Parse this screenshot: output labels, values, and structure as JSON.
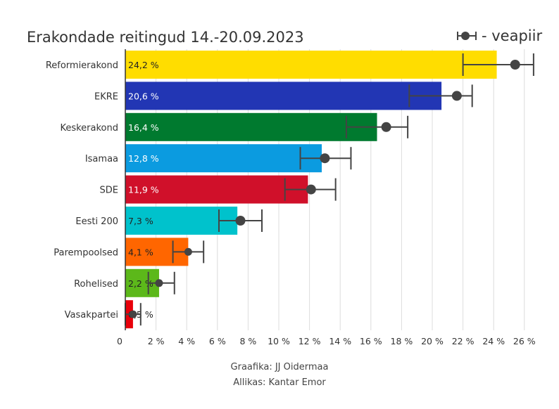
{
  "chart_data": {
    "type": "bar",
    "orientation": "horizontal",
    "title": "Erakondade reitingud 14.-20.09.2023",
    "legend": {
      "label": "- veapiir",
      "placement": "top-right"
    },
    "categories": [
      "Reformierakond",
      "EKRE",
      "Keskerakond",
      "Isamaa",
      "SDE",
      "Eesti 200",
      "Parempoolsed",
      "Rohelised",
      "Vasakpartei"
    ],
    "values": [
      24.2,
      20.6,
      16.4,
      12.8,
      11.9,
      7.3,
      4.1,
      2.2,
      0.5
    ],
    "value_labels": [
      "24,2 %",
      "20,6 %",
      "16,4 %",
      "12,8 %",
      "11,9 %",
      "7,3 %",
      "4,1 %",
      "2,2 %",
      "0,5 %"
    ],
    "points": [
      25.4,
      21.6,
      17.0,
      13.0,
      12.1,
      7.5,
      4.1,
      2.2,
      0.5
    ],
    "error_low": [
      22.0,
      18.5,
      14.4,
      11.4,
      10.4,
      6.1,
      3.1,
      1.5,
      0.0
    ],
    "error_high": [
      26.6,
      22.6,
      18.4,
      14.7,
      13.7,
      8.9,
      5.1,
      3.2,
      1.0
    ],
    "colors": [
      "#FFDD00",
      "#2236B4",
      "#007A2F",
      "#0B9BE0",
      "#D0102A",
      "#00C2CC",
      "#FF6600",
      "#5CB81A",
      "#E8000A"
    ],
    "label_colors": [
      "#222222",
      "#ffffff",
      "#ffffff",
      "#ffffff",
      "#ffffff",
      "#222222",
      "#222222",
      "#222222",
      "#222222"
    ],
    "x_ticks": [
      0,
      2,
      4,
      6,
      8,
      10,
      12,
      14,
      16,
      18,
      20,
      22,
      24,
      26
    ],
    "x_tick_labels": [
      "0",
      "2 %",
      "4 %",
      "6 %",
      "8 %",
      "10 %",
      "12 %",
      "14 %",
      "16 %",
      "18 %",
      "20 %",
      "22 %",
      "24 %",
      "26 %"
    ],
    "xlim": [
      0,
      26.5
    ],
    "grid": true,
    "xlabel": "",
    "ylabel": ""
  },
  "footer": {
    "credit": "Graafika: JJ Oidermaa",
    "source": "Allikas: Kantar Emor"
  }
}
